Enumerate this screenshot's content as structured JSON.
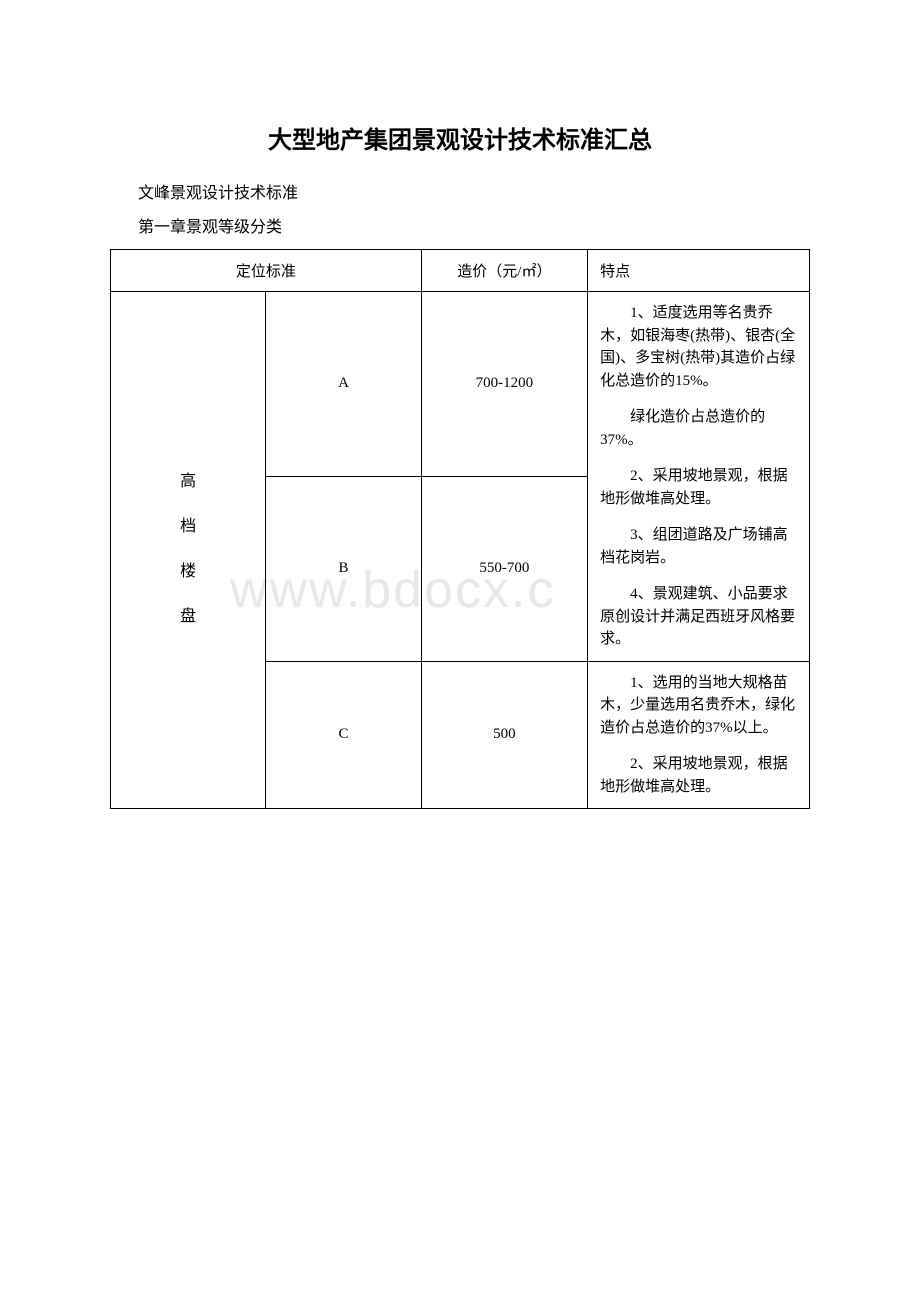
{
  "title": "大型地产集团景观设计技术标准汇总",
  "subtitle1": "文峰景观设计技术标准",
  "subtitle2": "第一章景观等级分类",
  "watermark": "www.bdocx.c",
  "table": {
    "headers": {
      "standard": "定位标准",
      "price": "造价（元/㎡）",
      "feature": "特点"
    },
    "category": "高\n档\n楼\n盘",
    "rows": [
      {
        "grade": "A",
        "price": "700-1200",
        "features": []
      },
      {
        "grade": "B",
        "price": "550-700",
        "features": [
          "1、适度选用等名贵乔木，如银海枣(热带)、银杏(全国)、多宝树(热带)其造价占绿化总造价的15%。",
          "绿化造价占总造价的37%。",
          "2、采用坡地景观，根据地形做堆高处理。",
          "3、组团道路及广场铺高档花岗岩。",
          "4、景观建筑、小品要求原创设计并满足西班牙风格要求。"
        ]
      },
      {
        "grade": "C",
        "price": "500",
        "features": [
          "1、选用的当地大规格苗木，少量选用名贵乔木，绿化造价占总造价的37%以上。",
          "2、采用坡地景观，根据地形做堆高处理。"
        ]
      }
    ]
  }
}
